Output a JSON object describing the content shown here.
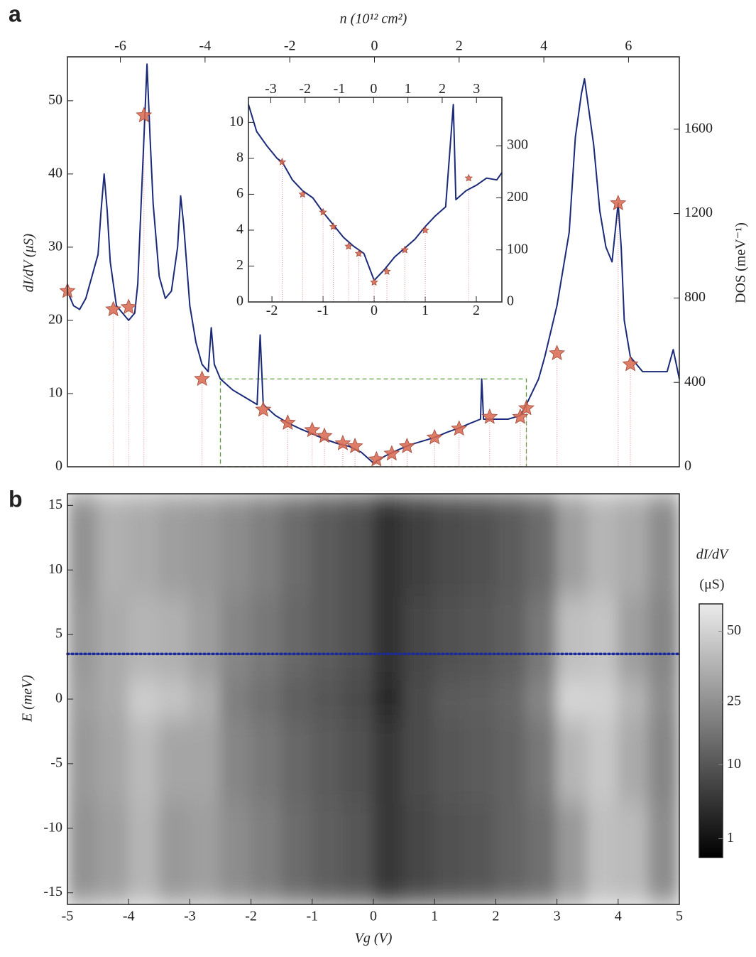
{
  "chart_data": [
    {
      "type": "line",
      "panel_label": "a",
      "x2_label": "n (10¹² cm²)",
      "y_label": "dI/dV (μS)",
      "y2_label": "DOS (meV⁻¹)",
      "xlim": [
        -5,
        5
      ],
      "x2lim": [
        -7.25,
        7.2
      ],
      "x2ticks": [
        -6,
        -4,
        -2,
        0,
        2,
        4,
        6
      ],
      "ylim": [
        0,
        56
      ],
      "yticks": [
        0,
        10,
        20,
        30,
        40,
        50
      ],
      "y2lim": [
        0,
        1943
      ],
      "y2ticks": [
        0,
        400,
        800,
        1200,
        1600
      ],
      "series": [
        {
          "color": "#1b2a78",
          "x": [
            -5,
            -4.9,
            -4.8,
            -4.7,
            -4.6,
            -4.5,
            -4.45,
            -4.4,
            -4.35,
            -4.3,
            -4.2,
            -4.1,
            -4.0,
            -3.9,
            -3.85,
            -3.8,
            -3.75,
            -3.7,
            -3.65,
            -3.6,
            -3.5,
            -3.4,
            -3.3,
            -3.2,
            -3.15,
            -3.1,
            -3.0,
            -2.9,
            -2.8,
            -2.7,
            -2.65,
            -2.6,
            -2.5,
            -2.3,
            -2.1,
            -1.9,
            -1.85,
            -1.8,
            -1.6,
            -1.4,
            -1.2,
            -1.0,
            -0.8,
            -0.6,
            -0.4,
            -0.2,
            0,
            0.2,
            0.4,
            0.6,
            0.8,
            1.0,
            1.2,
            1.4,
            1.6,
            1.75,
            1.77,
            1.8,
            2.0,
            2.2,
            2.4,
            2.5,
            2.7,
            2.8,
            3.0,
            3.2,
            3.3,
            3.4,
            3.45,
            3.5,
            3.6,
            3.7,
            3.8,
            3.9,
            4.0,
            4.05,
            4.1,
            4.2,
            4.4,
            4.6,
            4.8,
            4.9,
            5.0
          ],
          "values": [
            24,
            22,
            21.5,
            23,
            26,
            29,
            35,
            40,
            35,
            28,
            22,
            21,
            20,
            21,
            25,
            35,
            45,
            55,
            45,
            36,
            26,
            23,
            24,
            30,
            37,
            33,
            22,
            17,
            14,
            13,
            19,
            14,
            12,
            10.5,
            9.5,
            8.5,
            18,
            8.5,
            7,
            6,
            5.2,
            4.5,
            3.8,
            3.2,
            2.8,
            2,
            0.5,
            1.5,
            2.3,
            3,
            3.5,
            4,
            4.7,
            5.3,
            6,
            6.5,
            12,
            6.5,
            6.5,
            6.5,
            7,
            8.5,
            12,
            15,
            22,
            32,
            45,
            51,
            53,
            50,
            44,
            35,
            30,
            28,
            36,
            30,
            20,
            15,
            13,
            13,
            13,
            16,
            12
          ]
        }
      ],
      "markers": {
        "color": "#d9674e",
        "x": [
          -5,
          -4.25,
          -4.0,
          -3.75,
          -2.8,
          -1.8,
          -1.4,
          -1.0,
          -0.8,
          -0.5,
          -0.3,
          0.05,
          0.3,
          0.55,
          1.0,
          1.4,
          1.9,
          2.4,
          2.5,
          3.0,
          4.0,
          4.2
        ],
        "values": [
          24,
          21.5,
          21.8,
          48,
          12,
          7.8,
          6,
          5,
          4.2,
          3.2,
          2.8,
          1,
          1.8,
          2.8,
          4,
          5.2,
          6.8,
          6.8,
          8,
          15.5,
          36,
          14
        ]
      },
      "zoom_box": {
        "xlim": [
          -2.5,
          2.5
        ],
        "ylim": [
          0,
          12
        ],
        "color": "#5a9a3a"
      }
    },
    {
      "type": "line",
      "xlim": [
        -2.46,
        2.5
      ],
      "xticks": [
        -2,
        -1,
        0,
        1,
        2
      ],
      "x2lim": [
        -3.65,
        3.74
      ],
      "x2ticks": [
        -3,
        -2,
        -1,
        0,
        1,
        2,
        3
      ],
      "ylim": [
        0,
        11.4
      ],
      "yticks": [
        0,
        2,
        4,
        6,
        8,
        10
      ],
      "y2lim": [
        0,
        393
      ],
      "y2ticks": [
        0,
        100,
        200,
        300
      ],
      "series": [
        {
          "color": "#1b2a78",
          "x": [
            -2.46,
            -2.3,
            -2.1,
            -1.9,
            -1.8,
            -1.6,
            -1.4,
            -1.2,
            -1.0,
            -0.8,
            -0.6,
            -0.4,
            -0.2,
            0,
            0.2,
            0.4,
            0.6,
            0.8,
            1.0,
            1.2,
            1.4,
            1.55,
            1.6,
            1.8,
            2.0,
            2.2,
            2.4,
            2.5
          ],
          "values": [
            11,
            9.5,
            8.7,
            8,
            7.8,
            6.8,
            6.2,
            5.8,
            5,
            4.3,
            3.6,
            3.1,
            2.7,
            1.2,
            1.8,
            2.5,
            3,
            3.5,
            4.2,
            4.8,
            5.3,
            11,
            5.7,
            6.2,
            6.5,
            6.9,
            6.8,
            7.2
          ]
        }
      ],
      "markers": {
        "color": "#d9674e",
        "x": [
          -1.8,
          -1.4,
          -1.0,
          -0.8,
          -0.5,
          -0.3,
          0,
          0.25,
          0.6,
          1.0,
          1.85
        ],
        "values": [
          7.8,
          6,
          5,
          4.2,
          3.1,
          2.7,
          1.1,
          1.7,
          2.9,
          4.0,
          6.9
        ]
      }
    },
    {
      "type": "heatmap",
      "panel_label": "b",
      "x_label": "Vg (V)",
      "y_label": "E (meV)",
      "xlim": [
        -5,
        5
      ],
      "xticks": [
        -5,
        -4,
        -3,
        -2,
        -1,
        0,
        1,
        2,
        3,
        4,
        5
      ],
      "ylim": [
        -15.9,
        15.9
      ],
      "yticks": [
        -15,
        -10,
        -5,
        0,
        5,
        10,
        15
      ],
      "x_edges": [
        -5,
        -4.5,
        -4,
        -3.5,
        -3,
        -2.5,
        -2,
        -1.5,
        -1,
        -0.5,
        0,
        0.5,
        1,
        1.5,
        2,
        2.5,
        3,
        3.5,
        4,
        4.5,
        5
      ],
      "y_edges": [
        -15.9,
        -8,
        -1.5,
        1.5,
        8,
        15.9
      ],
      "values": [
        [
          26,
          30,
          38,
          28,
          30,
          24,
          20,
          15,
          12,
          10,
          5,
          7,
          9,
          10,
          13,
          16,
          28,
          42,
          40,
          24
        ],
        [
          28,
          32,
          40,
          32,
          32,
          22,
          18,
          14,
          11,
          9,
          5,
          8,
          10,
          11,
          13,
          18,
          38,
          46,
          34,
          22
        ],
        [
          30,
          34,
          48,
          44,
          36,
          20,
          16,
          12,
          10,
          8,
          3,
          8,
          11,
          12,
          14,
          22,
          52,
          50,
          38,
          24
        ],
        [
          28,
          34,
          38,
          36,
          30,
          22,
          18,
          14,
          11,
          9,
          4,
          7,
          9,
          10,
          12,
          18,
          42,
          44,
          30,
          22
        ],
        [
          26,
          36,
          34,
          30,
          28,
          24,
          20,
          15,
          11,
          9,
          4,
          6,
          8,
          9,
          11,
          15,
          30,
          38,
          34,
          24
        ]
      ],
      "colorbar": {
        "label": [
          "dI/dV",
          "(μS)"
        ],
        "lim": [
          0.2,
          62
        ],
        "ticks": [
          1,
          10,
          25,
          50
        ],
        "scale": "sqrt"
      },
      "cut": {
        "E": 3.5,
        "color": "#1a2a9a"
      }
    }
  ]
}
